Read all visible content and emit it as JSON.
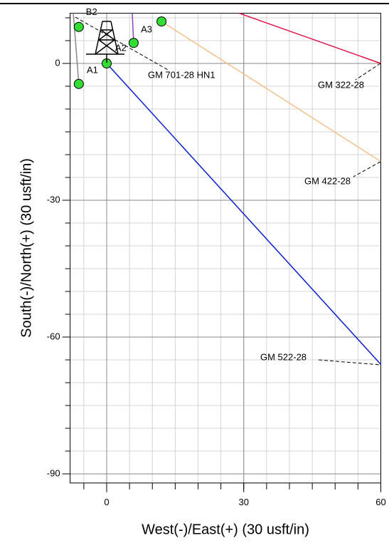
{
  "chart_data": {
    "type": "line",
    "xlabel": "West(-)/East(+) (30 usft/in)",
    "ylabel": "South(-)/North(+) (30 usft/in)",
    "xlim": [
      -8,
      60
    ],
    "ylim": [
      -92,
      11
    ],
    "xticks": [
      0,
      30,
      60
    ],
    "yticks": [
      -90,
      -60,
      -30,
      0
    ],
    "minor_step": 5,
    "grid": true,
    "series": [
      {
        "name": "GM 701-28 HN1",
        "color": "#888888",
        "x": [
          -7.3,
          -6.1
        ],
        "values": [
          11,
          -4.5
        ]
      },
      {
        "name": "GM 322-28",
        "color": "#dd1144",
        "x": [
          29,
          60
        ],
        "values": [
          11,
          0
        ]
      },
      {
        "name": "GM 422-28",
        "color": "#f5c08a",
        "x": [
          12,
          60
        ],
        "values": [
          9.2,
          -21.5
        ]
      },
      {
        "name": "GM 522-28",
        "color": "#0a1fcc",
        "x": [
          0,
          60
        ],
        "values": [
          0,
          -66
        ]
      },
      {
        "color": "#8844bb",
        "x": [
          5.6,
          5.9
        ],
        "values": [
          11,
          4.5
        ]
      }
    ],
    "markers": {
      "color": "#33dd33",
      "labels": [
        "B2",
        null,
        "A1",
        "A2",
        "A3"
      ],
      "x": [
        -6.1,
        -6.1,
        0,
        5.9,
        12
      ],
      "values": [
        8,
        -4.5,
        0,
        4.5,
        9.2
      ]
    }
  }
}
